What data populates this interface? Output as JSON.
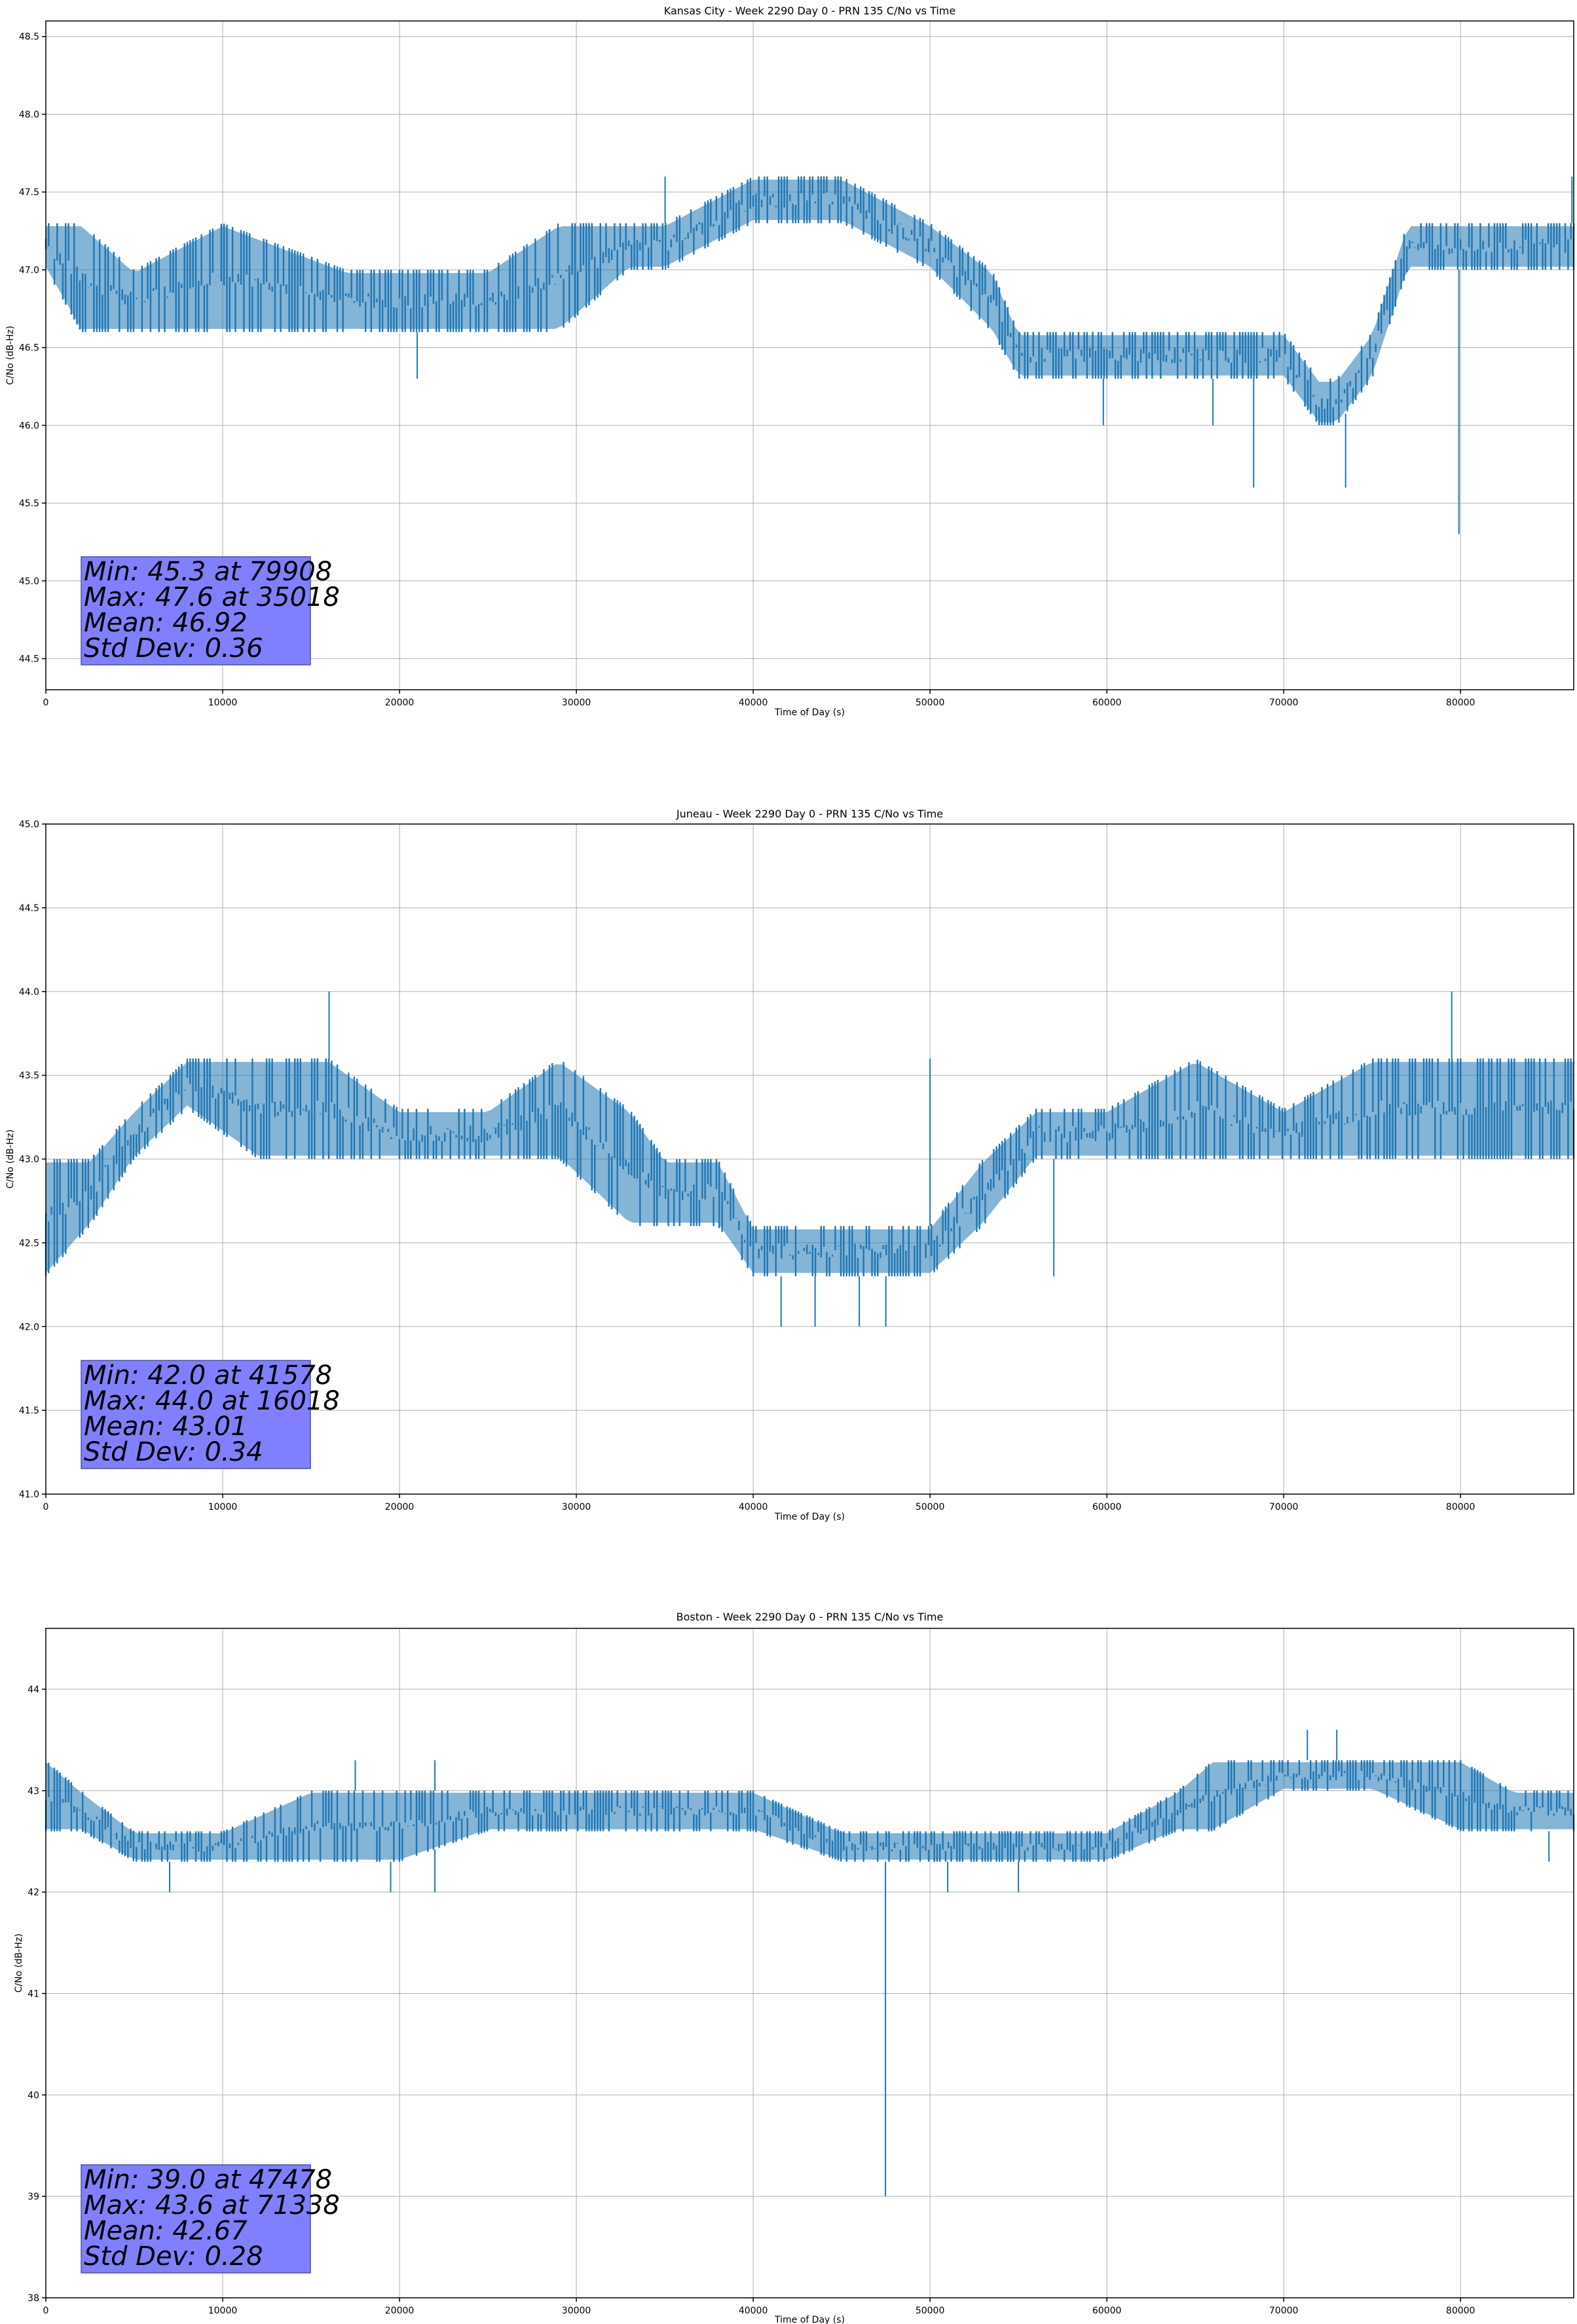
{
  "colors": {
    "series": "#1f77b4",
    "grid": "#b0b0b0",
    "stats_box_fill": "#8080ff",
    "axes": "#000000"
  },
  "chart_data": [
    {
      "type": "line",
      "title": "Kansas City - Week 2290 Day 0 - PRN 135 C/No vs Time",
      "xlabel": "Time of Day (s)",
      "ylabel": "C/No (dB-Hz)",
      "xlim": [
        0,
        86400
      ],
      "ylim": [
        44.3,
        48.6
      ],
      "xticks": [
        0,
        10000,
        20000,
        30000,
        40000,
        50000,
        60000,
        70000,
        80000
      ],
      "yticks": [
        44.5,
        45.0,
        45.5,
        46.0,
        46.5,
        47.0,
        47.5,
        48.0,
        48.5
      ],
      "ytick_labels": [
        "44.5",
        "45.0",
        "45.5",
        "46.0",
        "46.5",
        "47.0",
        "47.5",
        "48.0",
        "48.5"
      ],
      "grid": true,
      "stats": [
        "Min: 45.3 at 79908",
        "Max: 47.6 at 35018",
        "Mean: 46.92",
        "Std Dev: 0.36"
      ],
      "series": [
        {
          "x": [
            0,
            2000,
            5000,
            10000,
            17000,
            20000,
            25000,
            29000,
            33000,
            35000,
            40000,
            45000,
            50000,
            53500,
            55000,
            60000,
            65000,
            70000,
            72000,
            73000,
            75000,
            77000,
            80000,
            86400
          ],
          "low": [
            47.0,
            46.6,
            46.6,
            46.6,
            46.6,
            46.6,
            46.6,
            46.6,
            47.0,
            47.0,
            47.3,
            47.3,
            47.0,
            46.6,
            46.3,
            46.3,
            46.3,
            46.3,
            46.0,
            46.0,
            46.3,
            47.0,
            47.0,
            47.0
          ],
          "high": [
            47.3,
            47.3,
            47.0,
            47.3,
            47.0,
            47.0,
            47.0,
            47.3,
            47.3,
            47.3,
            47.6,
            47.6,
            47.3,
            47.0,
            46.6,
            46.6,
            46.6,
            46.6,
            46.3,
            46.3,
            46.6,
            47.3,
            47.3,
            47.3
          ],
          "spikes_low": [
            [
              21000,
              46.3
            ],
            [
              59800,
              46.0
            ],
            [
              66000,
              46.0
            ],
            [
              68300,
              45.6
            ],
            [
              73500,
              45.6
            ],
            [
              79908,
              45.3
            ]
          ],
          "spikes_high": [
            [
              35018,
              47.6
            ],
            [
              86300,
              47.6
            ]
          ]
        }
      ]
    },
    {
      "type": "line",
      "title": "Juneau - Week 2290 Day 0 - PRN 135 C/No vs Time",
      "xlabel": "Time of Day (s)",
      "ylabel": "C/No (dB-Hz)",
      "xlim": [
        0,
        86400
      ],
      "ylim": [
        41.0,
        45.0
      ],
      "xticks": [
        0,
        10000,
        20000,
        30000,
        40000,
        50000,
        60000,
        70000,
        80000
      ],
      "yticks": [
        41.0,
        41.5,
        42.0,
        42.5,
        43.0,
        43.5,
        44.0,
        44.5,
        45.0
      ],
      "ytick_labels": [
        "41.0",
        "41.5",
        "42.0",
        "42.5",
        "43.0",
        "43.5",
        "44.0",
        "44.5",
        "45.0"
      ],
      "grid": true,
      "stats": [
        "Min: 42.0 at 41578",
        "Max: 44.0 at 16018",
        "Mean: 43.01",
        "Std Dev: 0.34"
      ],
      "series": [
        {
          "x": [
            0,
            2500,
            5000,
            8000,
            12000,
            16000,
            20000,
            25000,
            29000,
            33000,
            35000,
            38000,
            40000,
            45000,
            50000,
            53000,
            56000,
            60000,
            65000,
            70000,
            75000,
            80000,
            86400
          ],
          "low": [
            42.3,
            42.6,
            43.0,
            43.3,
            43.0,
            43.0,
            43.0,
            43.0,
            43.0,
            42.6,
            42.6,
            42.6,
            42.3,
            42.3,
            42.3,
            42.6,
            43.0,
            43.0,
            43.0,
            43.0,
            43.0,
            43.0,
            43.0
          ],
          "high": [
            43.0,
            43.0,
            43.3,
            43.6,
            43.6,
            43.6,
            43.3,
            43.3,
            43.6,
            43.3,
            43.0,
            43.0,
            42.6,
            42.6,
            42.6,
            43.0,
            43.3,
            43.3,
            43.6,
            43.3,
            43.6,
            43.6,
            43.6
          ],
          "spikes_low": [
            [
              41578,
              42.0
            ],
            [
              43500,
              42.0
            ],
            [
              46000,
              42.0
            ],
            [
              47500,
              42.0
            ],
            [
              57000,
              42.3
            ]
          ],
          "spikes_high": [
            [
              16018,
              44.0
            ],
            [
              79500,
              44.0
            ],
            [
              50000,
              43.6
            ]
          ]
        }
      ]
    },
    {
      "type": "line",
      "title": "Boston - Week 2290 Day 0 - PRN 135 C/No vs Time",
      "xlabel": "Time of Day (s)",
      "ylabel": "C/No (dB-Hz)",
      "xlim": [
        0,
        86400
      ],
      "ylim": [
        38.0,
        44.6
      ],
      "xticks": [
        0,
        10000,
        20000,
        30000,
        40000,
        50000,
        60000,
        70000,
        80000
      ],
      "yticks": [
        38,
        39,
        40,
        41,
        42,
        43,
        44
      ],
      "ytick_labels": [
        "38",
        "39",
        "40",
        "41",
        "42",
        "43",
        "44"
      ],
      "grid": true,
      "stats": [
        "Min: 39.0 at 47478",
        "Max: 43.6 at 71338",
        "Mean: 42.67",
        "Std Dev: 0.28"
      ],
      "series": [
        {
          "x": [
            0,
            2000,
            5000,
            10000,
            15000,
            20000,
            25000,
            30000,
            35000,
            40000,
            45000,
            50000,
            55000,
            60000,
            64000,
            66000,
            70000,
            75000,
            80000,
            83000,
            86400
          ],
          "low": [
            42.6,
            42.6,
            42.3,
            42.3,
            42.3,
            42.3,
            42.6,
            42.6,
            42.6,
            42.6,
            42.3,
            42.3,
            42.3,
            42.3,
            42.6,
            42.6,
            43.0,
            43.0,
            42.6,
            42.6,
            42.6
          ],
          "high": [
            43.3,
            43.0,
            42.6,
            42.6,
            43.0,
            43.0,
            43.0,
            43.0,
            43.0,
            43.0,
            42.6,
            42.6,
            42.6,
            42.6,
            43.0,
            43.3,
            43.3,
            43.3,
            43.3,
            43.0,
            43.0
          ],
          "spikes_low": [
            [
              47478,
              39.0
            ],
            [
              7000,
              42.0
            ],
            [
              19500,
              42.0
            ],
            [
              22000,
              42.0
            ],
            [
              51000,
              42.0
            ],
            [
              55000,
              42.0
            ],
            [
              85000,
              42.3
            ]
          ],
          "spikes_high": [
            [
              71338,
              43.6
            ],
            [
              73000,
              43.6
            ],
            [
              17500,
              43.3
            ],
            [
              22000,
              43.3
            ]
          ]
        }
      ]
    }
  ]
}
